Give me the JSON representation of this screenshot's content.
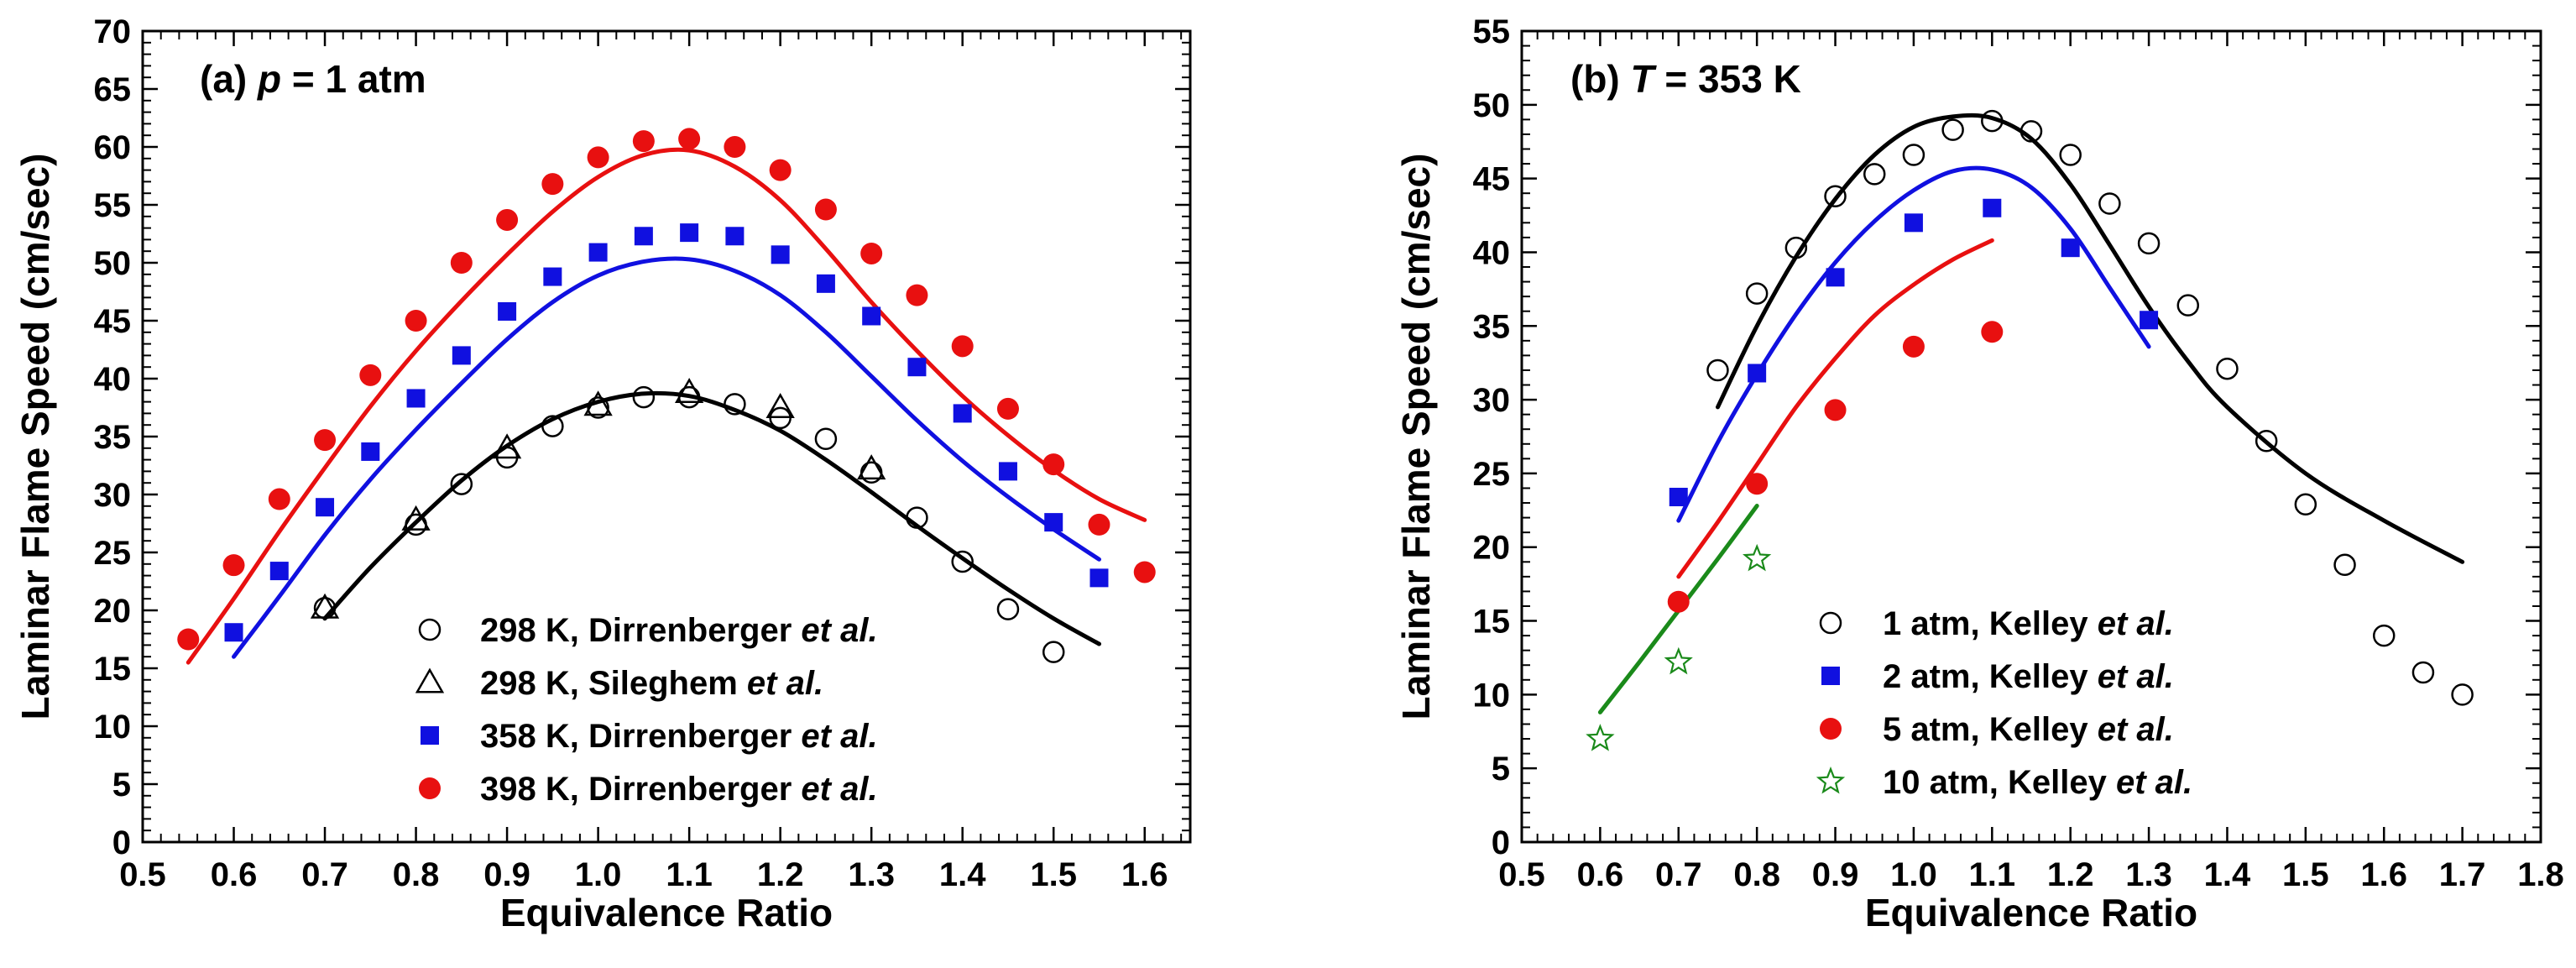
{
  "chart_data": [
    {
      "type": "scatter",
      "panel_label": {
        "prefix": "(a) ",
        "var": "p",
        "rest": " = 1 atm"
      },
      "xlabel": "Equivalence Ratio",
      "ylabel": "Laminar Flame Speed (cm/sec)",
      "xlim": [
        0.5,
        1.65
      ],
      "ylim": [
        0,
        70
      ],
      "xticks": [
        "0.5",
        "0.6",
        "0.7",
        "0.8",
        "0.9",
        "1.0",
        "1.1",
        "1.2",
        "1.3",
        "1.4",
        "1.5",
        "1.6"
      ],
      "yticks": [
        "0",
        "5",
        "10",
        "15",
        "20",
        "25",
        "30",
        "35",
        "40",
        "45",
        "50",
        "55",
        "60",
        "65",
        "70"
      ],
      "legend_position": "bottom-right",
      "series": [
        {
          "name": "298 K, Dirrenberger",
          "name_suffix": "et al.",
          "marker": "open-circle",
          "color": "#000000",
          "x": [
            0.7,
            0.8,
            0.85,
            0.9,
            0.95,
            1.0,
            1.05,
            1.1,
            1.15,
            1.2,
            1.25,
            1.3,
            1.35,
            1.4,
            1.45,
            1.5
          ],
          "y": [
            20.2,
            27.4,
            30.9,
            33.2,
            35.9,
            37.5,
            38.4,
            38.4,
            37.8,
            36.6,
            34.8,
            31.9,
            28.0,
            24.2,
            20.1,
            16.4
          ]
        },
        {
          "name": "298 K, Sileghem",
          "name_suffix": "et al.",
          "marker": "open-triangle",
          "color": "#000000",
          "x": [
            0.7,
            0.8,
            0.9,
            1.0,
            1.1,
            1.2,
            1.3
          ],
          "y": [
            20.2,
            27.8,
            34.0,
            37.7,
            38.8,
            37.5,
            32.2
          ]
        },
        {
          "name": "358 K, Dirrenberger",
          "name_suffix": "et al.",
          "marker": "filled-square",
          "color": "#1010e0",
          "x": [
            0.6,
            0.65,
            0.7,
            0.75,
            0.8,
            0.85,
            0.9,
            0.95,
            1.0,
            1.05,
            1.1,
            1.15,
            1.2,
            1.25,
            1.3,
            1.35,
            1.4,
            1.45,
            1.5,
            1.55
          ],
          "y": [
            18.1,
            23.4,
            28.9,
            33.7,
            38.3,
            42.0,
            45.8,
            48.8,
            50.9,
            52.3,
            52.6,
            52.3,
            50.7,
            48.2,
            45.4,
            41.0,
            37.0,
            32.0,
            27.6,
            22.8
          ]
        },
        {
          "name": "398 K, Dirrenberger",
          "name_suffix": "et al.",
          "marker": "filled-circle",
          "color": "#e81010",
          "x": [
            0.55,
            0.6,
            0.65,
            0.7,
            0.75,
            0.8,
            0.85,
            0.9,
            0.95,
            1.0,
            1.05,
            1.1,
            1.15,
            1.2,
            1.25,
            1.3,
            1.35,
            1.4,
            1.45,
            1.5,
            1.55,
            1.6
          ],
          "y": [
            17.5,
            23.9,
            29.6,
            34.7,
            40.3,
            45.0,
            50.0,
            53.7,
            56.8,
            59.1,
            60.5,
            60.7,
            60.0,
            58.0,
            54.6,
            50.8,
            47.2,
            42.8,
            37.4,
            32.6,
            27.4,
            23.3
          ]
        }
      ],
      "curves": [
        {
          "color": "#000000",
          "x": [
            0.7,
            0.75,
            0.8,
            0.85,
            0.9,
            0.95,
            1.0,
            1.05,
            1.1,
            1.15,
            1.2,
            1.25,
            1.3,
            1.35,
            1.4,
            1.45,
            1.5,
            1.55
          ],
          "y": [
            19.3,
            23.7,
            27.6,
            31.2,
            34.2,
            36.5,
            38.0,
            38.7,
            38.5,
            37.3,
            35.5,
            33.0,
            30.2,
            27.3,
            24.5,
            21.8,
            19.3,
            17.1
          ]
        },
        {
          "color": "#1010e0",
          "x": [
            0.6,
            0.65,
            0.7,
            0.75,
            0.8,
            0.85,
            0.9,
            0.95,
            1.0,
            1.05,
            1.1,
            1.15,
            1.2,
            1.25,
            1.3,
            1.35,
            1.4,
            1.45,
            1.5,
            1.55
          ],
          "y": [
            16.0,
            21.2,
            26.5,
            31.3,
            35.6,
            39.6,
            43.4,
            46.6,
            48.9,
            50.1,
            50.3,
            49.3,
            47.2,
            44.0,
            40.2,
            36.4,
            32.9,
            29.8,
            27.0,
            24.4
          ]
        },
        {
          "color": "#e81010",
          "x": [
            0.55,
            0.6,
            0.65,
            0.7,
            0.75,
            0.8,
            0.85,
            0.9,
            0.95,
            1.0,
            1.05,
            1.1,
            1.15,
            1.2,
            1.25,
            1.3,
            1.35,
            1.4,
            1.45,
            1.5,
            1.55,
            1.6
          ],
          "y": [
            15.5,
            21.0,
            26.8,
            32.3,
            37.6,
            42.4,
            46.7,
            50.7,
            54.4,
            57.4,
            59.3,
            59.7,
            58.3,
            55.4,
            51.2,
            46.6,
            42.4,
            38.5,
            35.1,
            32.1,
            29.6,
            27.8
          ]
        }
      ]
    },
    {
      "type": "scatter",
      "panel_label": {
        "prefix": "(b) ",
        "var": "T",
        "rest": " = 353 K"
      },
      "xlabel": "Equivalence Ratio",
      "ylabel": "Laminar Flame Speed (cm/sec)",
      "xlim": [
        0.5,
        1.8
      ],
      "ylim": [
        0,
        55
      ],
      "xticks": [
        "0.5",
        "0.6",
        "0.7",
        "0.8",
        "0.9",
        "1.0",
        "1.1",
        "1.2",
        "1.3",
        "1.4",
        "1.5",
        "1.6",
        "1.7",
        "1.8"
      ],
      "yticks": [
        "0",
        "5",
        "10",
        "15",
        "20",
        "25",
        "30",
        "35",
        "40",
        "45",
        "50",
        "55"
      ],
      "legend_position": "bottom-center",
      "series": [
        {
          "name": "1 atm, Kelley",
          "name_suffix": "et al.",
          "marker": "open-circle",
          "color": "#000000",
          "x": [
            0.75,
            0.8,
            0.85,
            0.9,
            0.95,
            1.0,
            1.05,
            1.1,
            1.15,
            1.2,
            1.25,
            1.3,
            1.35,
            1.4,
            1.45,
            1.5,
            1.55,
            1.6,
            1.65,
            1.7
          ],
          "y": [
            32.0,
            37.2,
            40.3,
            43.8,
            45.3,
            46.6,
            48.3,
            48.9,
            48.2,
            46.6,
            43.3,
            40.6,
            36.4,
            32.1,
            27.2,
            22.9,
            18.8,
            14.0,
            11.5,
            10.0
          ]
        },
        {
          "name": "2 atm, Kelley",
          "name_suffix": "et al.",
          "marker": "filled-square",
          "color": "#1010e0",
          "x": [
            0.7,
            0.8,
            0.9,
            1.0,
            1.1,
            1.2,
            1.3
          ],
          "y": [
            23.4,
            31.8,
            38.3,
            42.0,
            43.0,
            40.3,
            35.4
          ]
        },
        {
          "name": "5 atm, Kelley",
          "name_suffix": "et al.",
          "marker": "filled-circle",
          "color": "#e81010",
          "x": [
            0.7,
            0.8,
            0.9,
            1.0,
            1.1
          ],
          "y": [
            16.3,
            24.3,
            29.3,
            33.6,
            34.6
          ]
        },
        {
          "name": "10 atm, Kelley",
          "name_suffix": "et al.",
          "marker": "open-star",
          "color": "#1a8a1a",
          "x": [
            0.6,
            0.7,
            0.8
          ],
          "y": [
            7.0,
            12.2,
            19.2
          ]
        }
      ],
      "curves": [
        {
          "color": "#000000",
          "x": [
            0.75,
            0.8,
            0.85,
            0.9,
            0.95,
            1.0,
            1.05,
            1.1,
            1.15,
            1.2,
            1.25,
            1.3,
            1.35,
            1.4,
            1.5,
            1.6,
            1.7
          ],
          "y": [
            29.5,
            35.0,
            39.7,
            43.6,
            46.6,
            48.5,
            49.2,
            49.1,
            47.7,
            44.6,
            40.5,
            36.3,
            32.6,
            29.5,
            25.0,
            21.8,
            19.0
          ]
        },
        {
          "color": "#1010e0",
          "x": [
            0.7,
            0.75,
            0.8,
            0.85,
            0.9,
            0.95,
            1.0,
            1.05,
            1.1,
            1.15,
            1.2,
            1.25,
            1.3
          ],
          "y": [
            21.8,
            27.1,
            31.7,
            35.8,
            39.3,
            42.1,
            44.2,
            45.5,
            45.6,
            44.4,
            41.6,
            37.6,
            33.6
          ]
        },
        {
          "color": "#e81010",
          "x": [
            0.7,
            0.75,
            0.8,
            0.85,
            0.9,
            0.95,
            1.0,
            1.05,
            1.1
          ],
          "y": [
            18.0,
            21.7,
            25.6,
            29.5,
            32.8,
            35.7,
            37.8,
            39.5,
            40.8
          ]
        },
        {
          "color": "#1a8a1a",
          "x": [
            0.6,
            0.65,
            0.7,
            0.75,
            0.8
          ],
          "y": [
            8.8,
            12.2,
            15.7,
            19.2,
            22.8
          ]
        }
      ]
    }
  ]
}
